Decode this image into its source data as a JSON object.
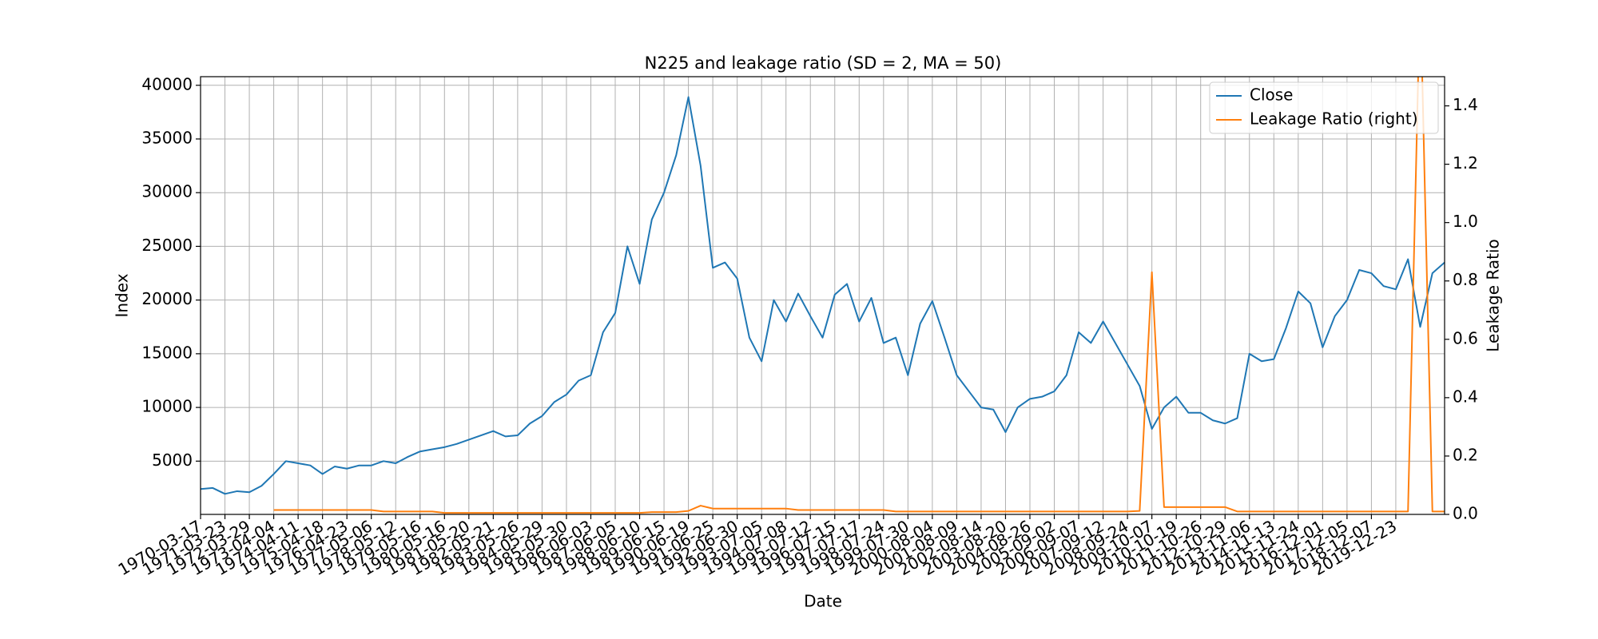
{
  "chart_data": {
    "type": "line",
    "title": "N225 and leakage ratio (SD = 2, MA = 50)",
    "x_label": "Date",
    "y_label": "Index",
    "y2_label": "Leakage Ratio",
    "x": [
      "1970-03-17",
      "1970-09-21",
      "1971-03-23",
      "1971-09-27",
      "1972-03-29",
      "1972-10-03",
      "1973-04-04",
      "1973-10-09",
      "1974-04-11",
      "1974-10-16",
      "1975-04-18",
      "1975-10-21",
      "1976-04-23",
      "1976-11-01",
      "1977-05-06",
      "1977-11-09",
      "1978-05-12",
      "1978-11-14",
      "1979-05-16",
      "1979-11-15",
      "1980-05-16",
      "1980-11-18",
      "1981-05-20",
      "1981-11-20",
      "1982-05-21",
      "1982-11-24",
      "1983-05-26",
      "1983-11-28",
      "1984-05-29",
      "1984-11-29",
      "1985-05-30",
      "1985-12-02",
      "1986-06-03",
      "1986-12-04",
      "1987-06-05",
      "1987-12-08",
      "1988-06-10",
      "1988-12-13",
      "1989-06-15",
      "1989-12-18",
      "1990-06-19",
      "1990-12-21",
      "1991-06-25",
      "1991-12-27",
      "1992-06-30",
      "1993-01-04",
      "1993-07-05",
      "1994-01-06",
      "1994-07-08",
      "1995-01-10",
      "1995-07-12",
      "1996-01-12",
      "1996-07-15",
      "1997-01-16",
      "1997-07-17",
      "1998-01-20",
      "1998-07-24",
      "1999-01-27",
      "1999-07-30",
      "2000-02-02",
      "2000-08-04",
      "2001-02-07",
      "2001-08-09",
      "2002-02-12",
      "2002-08-14",
      "2003-02-17",
      "2003-08-20",
      "2004-02-23",
      "2004-08-26",
      "2005-03-01",
      "2005-09-02",
      "2006-03-06",
      "2006-09-07",
      "2007-03-12",
      "2007-09-12",
      "2008-03-18",
      "2008-09-24",
      "2009-04-01",
      "2009-10-07",
      "2010-04-13",
      "2010-10-19",
      "2011-04-22",
      "2011-10-26",
      "2012-04-27",
      "2012-10-29",
      "2013-05-02",
      "2013-11-06",
      "2014-05-09",
      "2014-11-13",
      "2015-05-19",
      "2015-11-24",
      "2016-05-27",
      "2016-12-01",
      "2017-06-02",
      "2017-12-05",
      "2018-06-06",
      "2018-12-07",
      "2019-06-14",
      "2019-12-23",
      "2020-06-26",
      "2020-12-30",
      "2021-07-05",
      "2022-01-07"
    ],
    "xticks": [
      "1970-03-17",
      "1971-03-23",
      "1972-03-29",
      "1973-04-04",
      "1974-04-11",
      "1975-04-18",
      "1976-04-23",
      "1977-05-06",
      "1978-05-12",
      "1979-05-16",
      "1980-05-16",
      "1981-05-20",
      "1982-05-21",
      "1983-05-26",
      "1984-05-29",
      "1985-05-30",
      "1986-06-03",
      "1987-06-05",
      "1988-06-10",
      "1989-06-15",
      "1990-06-19",
      "1991-06-25",
      "1992-06-30",
      "1993-07-05",
      "1994-07-08",
      "1995-07-12",
      "1996-07-15",
      "1997-07-17",
      "1998-07-24",
      "1999-07-30",
      "2000-08-04",
      "2001-08-09",
      "2002-08-14",
      "2003-08-20",
      "2004-08-26",
      "2005-09-02",
      "2006-09-07",
      "2007-09-12",
      "2008-09-24",
      "2009-10-07",
      "2010-10-19",
      "2011-10-26",
      "2012-10-29",
      "2013-11-06",
      "2014-11-13",
      "2015-11-24",
      "2016-12-01",
      "2017-12-05",
      "2018-12-07",
      "2019-12-23"
    ],
    "series": [
      {
        "name": "Close",
        "color": "#1f77b4",
        "values": [
          2400,
          2500,
          1950,
          2200,
          2100,
          2700,
          3800,
          5000,
          4800,
          4600,
          3800,
          4500,
          4300,
          4600,
          4600,
          5000,
          4800,
          5400,
          5900,
          6100,
          6300,
          6600,
          7000,
          7400,
          7800,
          7300,
          7400,
          8500,
          9200,
          10500,
          11200,
          12500,
          13000,
          17000,
          18800,
          25000,
          21500,
          27500,
          30000,
          33500,
          38900,
          32500,
          23000,
          23500,
          22000,
          16500,
          14300,
          20000,
          18000,
          20600,
          18500,
          16500,
          20500,
          21500,
          18000,
          20200,
          16000,
          16500,
          13000,
          17800,
          19900,
          16500,
          13000,
          11500,
          10000,
          9800,
          7700,
          10000,
          10800,
          11000,
          11500,
          13000,
          17000,
          16000,
          18000,
          16000,
          14000,
          12000,
          8000,
          10000,
          11000,
          9500,
          9500,
          8800,
          8500,
          9000,
          15000,
          14300,
          14500,
          17400,
          20800,
          19700,
          15600,
          18500,
          20000,
          22800,
          22500,
          21300,
          21000,
          23800,
          17500,
          22500,
          23500
        ]
      },
      {
        "name": "Leakage Ratio (right)",
        "color": "#ff7f0e",
        "axis": "y2",
        "values": [
          null,
          null,
          null,
          null,
          null,
          null,
          0.015,
          0.015,
          0.015,
          0.015,
          0.015,
          0.015,
          0.015,
          0.015,
          0.015,
          0.01,
          0.01,
          0.01,
          0.01,
          0.01,
          0.005,
          0.005,
          0.005,
          0.005,
          0.005,
          0.005,
          0.005,
          0.005,
          0.005,
          0.005,
          0.005,
          0.005,
          0.005,
          0.005,
          0.005,
          0.005,
          0.005,
          0.008,
          0.008,
          0.008,
          0.012,
          0.03,
          0.02,
          0.02,
          0.02,
          0.02,
          0.02,
          0.02,
          0.02,
          0.015,
          0.015,
          0.015,
          0.015,
          0.015,
          0.015,
          0.015,
          0.015,
          0.01,
          0.01,
          0.01,
          0.01,
          0.01,
          0.01,
          0.01,
          0.01,
          0.01,
          0.01,
          0.01,
          0.01,
          0.01,
          0.01,
          0.01,
          0.01,
          0.01,
          0.01,
          0.01,
          0.01,
          0.012,
          0.83,
          0.025,
          0.025,
          0.025,
          0.025,
          0.025,
          0.025,
          0.01,
          0.01,
          0.01,
          0.01,
          0.01,
          0.01,
          0.01,
          0.01,
          0.01,
          0.01,
          0.01,
          0.01,
          0.01,
          0.01,
          0.01,
          1.8,
          0.01,
          0.01
        ]
      }
    ],
    "ylim": [
      40,
      40800
    ],
    "yticks": [
      5000,
      10000,
      15000,
      20000,
      25000,
      30000,
      35000,
      40000
    ],
    "y2lim": [
      0,
      1.5
    ],
    "y2ticks": [
      {
        "value": 0,
        "label": "0.0"
      },
      0.2,
      0.4,
      0.6,
      0.8,
      {
        "value": 1,
        "label": "1.0"
      },
      1.2,
      1.4
    ],
    "grid": true,
    "legend": "upper right"
  }
}
